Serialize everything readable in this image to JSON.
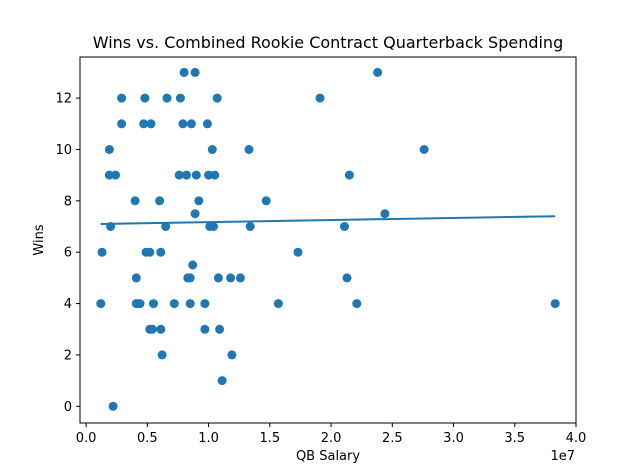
{
  "chart_data": {
    "type": "scatter",
    "title": "Wins vs. Combined Rookie Contract Quarterback Spending",
    "xlabel": "QB Salary",
    "ylabel": "Wins",
    "x_offset_label": "1e7",
    "xlim": [
      -0.05,
      4.0
    ],
    "ylim": [
      -0.65,
      13.6
    ],
    "x_ticks": [
      0.0,
      0.5,
      1.0,
      1.5,
      2.0,
      2.5,
      3.0,
      3.5,
      4.0
    ],
    "x_tick_labels": [
      "0.0",
      "0.5",
      "1.0",
      "1.5",
      "2.0",
      "2.5",
      "3.0",
      "3.5",
      "4.0"
    ],
    "y_ticks": [
      0,
      2,
      4,
      6,
      8,
      10,
      12
    ],
    "y_tick_labels": [
      "0",
      "2",
      "4",
      "6",
      "8",
      "10",
      "12"
    ],
    "grid": false,
    "legend": "none",
    "colors": {
      "points": "#1f77b4",
      "trend": "#1f77b4"
    },
    "x_units_note": "x values are in units of 1e7",
    "points": [
      {
        "x": 0.13,
        "y": 6
      },
      {
        "x": 0.12,
        "y": 4
      },
      {
        "x": 0.19,
        "y": 10
      },
      {
        "x": 0.19,
        "y": 9
      },
      {
        "x": 0.2,
        "y": 7
      },
      {
        "x": 0.24,
        "y": 9
      },
      {
        "x": 0.22,
        "y": 0
      },
      {
        "x": 0.29,
        "y": 12
      },
      {
        "x": 0.29,
        "y": 11
      },
      {
        "x": 0.4,
        "y": 8
      },
      {
        "x": 0.41,
        "y": 5
      },
      {
        "x": 0.41,
        "y": 4
      },
      {
        "x": 0.44,
        "y": 4
      },
      {
        "x": 0.47,
        "y": 11
      },
      {
        "x": 0.48,
        "y": 12
      },
      {
        "x": 0.49,
        "y": 6
      },
      {
        "x": 0.52,
        "y": 6
      },
      {
        "x": 0.52,
        "y": 3
      },
      {
        "x": 0.54,
        "y": 3
      },
      {
        "x": 0.53,
        "y": 11
      },
      {
        "x": 0.55,
        "y": 4
      },
      {
        "x": 0.6,
        "y": 8
      },
      {
        "x": 0.61,
        "y": 6
      },
      {
        "x": 0.61,
        "y": 3
      },
      {
        "x": 0.62,
        "y": 2
      },
      {
        "x": 0.65,
        "y": 7
      },
      {
        "x": 0.66,
        "y": 12
      },
      {
        "x": 0.72,
        "y": 4
      },
      {
        "x": 0.76,
        "y": 9
      },
      {
        "x": 0.77,
        "y": 12
      },
      {
        "x": 0.79,
        "y": 11
      },
      {
        "x": 0.8,
        "y": 13
      },
      {
        "x": 0.82,
        "y": 9
      },
      {
        "x": 0.83,
        "y": 5
      },
      {
        "x": 0.85,
        "y": 5
      },
      {
        "x": 0.85,
        "y": 4
      },
      {
        "x": 0.86,
        "y": 11
      },
      {
        "x": 0.87,
        "y": 5.5
      },
      {
        "x": 0.89,
        "y": 13
      },
      {
        "x": 0.89,
        "y": 7.5
      },
      {
        "x": 0.9,
        "y": 9
      },
      {
        "x": 0.92,
        "y": 8
      },
      {
        "x": 0.97,
        "y": 4
      },
      {
        "x": 0.97,
        "y": 3
      },
      {
        "x": 0.99,
        "y": 11
      },
      {
        "x": 1.0,
        "y": 9
      },
      {
        "x": 1.01,
        "y": 7
      },
      {
        "x": 1.03,
        "y": 10
      },
      {
        "x": 1.04,
        "y": 7
      },
      {
        "x": 1.05,
        "y": 9
      },
      {
        "x": 1.07,
        "y": 12
      },
      {
        "x": 1.08,
        "y": 5
      },
      {
        "x": 1.09,
        "y": 3
      },
      {
        "x": 1.11,
        "y": 1
      },
      {
        "x": 1.18,
        "y": 5
      },
      {
        "x": 1.19,
        "y": 2
      },
      {
        "x": 1.26,
        "y": 5
      },
      {
        "x": 1.33,
        "y": 10
      },
      {
        "x": 1.34,
        "y": 7
      },
      {
        "x": 1.47,
        "y": 8
      },
      {
        "x": 1.57,
        "y": 4
      },
      {
        "x": 1.73,
        "y": 6
      },
      {
        "x": 1.91,
        "y": 12
      },
      {
        "x": 2.11,
        "y": 7
      },
      {
        "x": 2.13,
        "y": 5
      },
      {
        "x": 2.15,
        "y": 9
      },
      {
        "x": 2.21,
        "y": 4
      },
      {
        "x": 2.38,
        "y": 13
      },
      {
        "x": 2.44,
        "y": 7.5
      },
      {
        "x": 2.76,
        "y": 10
      },
      {
        "x": 3.83,
        "y": 4
      }
    ],
    "trend_line": {
      "x": [
        0.12,
        3.83
      ],
      "y": [
        7.1,
        7.4
      ]
    }
  }
}
